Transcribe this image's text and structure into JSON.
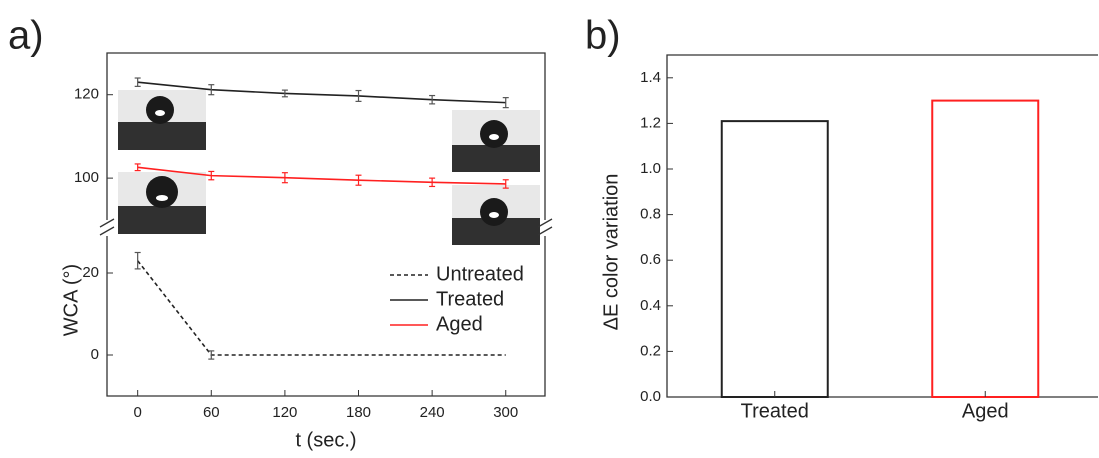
{
  "chart_data": [
    {
      "type": "line",
      "panel_label": "a)",
      "xlabel": "t (sec.)",
      "ylabel": "WCA (°)",
      "x": [
        0,
        60,
        120,
        180,
        240,
        300
      ],
      "xlim": [
        -25,
        332
      ],
      "xticks": [
        0,
        60,
        120,
        180,
        240,
        300
      ],
      "ylim": [
        -10,
        130
      ],
      "ybreak": [
        30,
        89
      ],
      "yticks": [
        0,
        20,
        100,
        120
      ],
      "legend": "lower right",
      "series": [
        {
          "name": "Untreated",
          "color": "#222222",
          "dash": true,
          "values": [
            23,
            0,
            0,
            0,
            0,
            0
          ],
          "errors": [
            2,
            1,
            null,
            null,
            null,
            null
          ]
        },
        {
          "name": "Treated",
          "color": "#222222",
          "dash": false,
          "values": [
            123,
            121.2,
            120.3,
            119.7,
            118.8,
            118.1
          ],
          "errors": [
            1,
            1.2,
            0.8,
            1.3,
            1,
            1.2
          ]
        },
        {
          "name": "Aged",
          "color": "#ff2020",
          "dash": false,
          "values": [
            102.6,
            100.6,
            100.1,
            99.5,
            99,
            98.6
          ],
          "errors": [
            0.8,
            1,
            1.2,
            1.2,
            1,
            1
          ]
        }
      ]
    },
    {
      "type": "bar",
      "panel_label": "b)",
      "ylabel": "ΔE color variation",
      "categories": [
        "Treated",
        "Aged"
      ],
      "values": [
        1.21,
        1.3
      ],
      "colors": [
        "#222222",
        "#ff2020"
      ],
      "ylim": [
        0,
        1.5
      ],
      "yticks": [
        {
          "value": 0,
          "label": "0.0"
        },
        0.2,
        0.4,
        0.6,
        0.8,
        {
          "value": 1,
          "label": "1.0"
        },
        1.2,
        1.4
      ]
    }
  ]
}
